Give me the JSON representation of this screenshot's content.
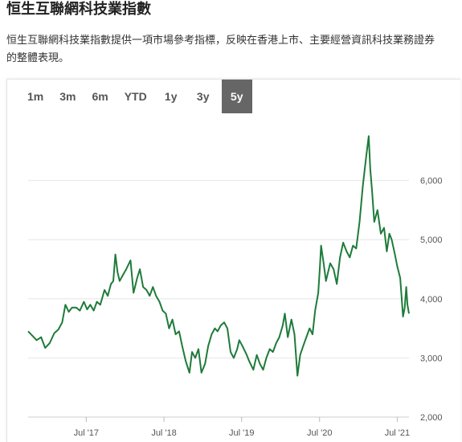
{
  "page": {
    "title": "恒生互聯網科技業指數",
    "description": "恒生互聯網科技業指數提供一項市場參考指標，反映在香港上市、主要經營資訊科技業務證券的整體表現。"
  },
  "range_selector": {
    "active": "5y",
    "options": [
      "1m",
      "3m",
      "6m",
      "YTD",
      "1y",
      "3y",
      "5y"
    ]
  },
  "colors": {
    "line": "#1e7b3a",
    "grid": "#e6e6e6",
    "active_bg": "#666666"
  },
  "chart_data": {
    "type": "line",
    "title": "",
    "xlabel": "",
    "ylabel": "",
    "ylim": [
      2000,
      7000
    ],
    "yticks": [
      2000,
      3000,
      4000,
      5000,
      6000
    ],
    "ytick_labels": [
      "2,000",
      "3,000",
      "4,000",
      "5,000",
      "6,000"
    ],
    "xticks": [
      "2017-07-01",
      "2018-07-01",
      "2019-07-01",
      "2020-07-01",
      "2021-07-01"
    ],
    "xtick_labels": [
      "Jul '17",
      "Jul '18",
      "Jul '19",
      "Jul '20",
      "Jul '21"
    ],
    "xlim": [
      "2016-10-01",
      "2021-08-25"
    ],
    "grid": true,
    "series": [
      {
        "name": "",
        "points": [
          [
            "2016-10-01",
            3450
          ],
          [
            "2016-10-20",
            3380
          ],
          [
            "2016-11-10",
            3300
          ],
          [
            "2016-12-01",
            3350
          ],
          [
            "2016-12-20",
            3170
          ],
          [
            "2017-01-10",
            3250
          ],
          [
            "2017-02-01",
            3420
          ],
          [
            "2017-02-20",
            3480
          ],
          [
            "2017-03-10",
            3600
          ],
          [
            "2017-03-25",
            3900
          ],
          [
            "2017-04-10",
            3780
          ],
          [
            "2017-04-25",
            3850
          ],
          [
            "2017-05-15",
            3850
          ],
          [
            "2017-06-01",
            3800
          ],
          [
            "2017-06-20",
            3950
          ],
          [
            "2017-07-05",
            3820
          ],
          [
            "2017-07-20",
            3900
          ],
          [
            "2017-08-05",
            3800
          ],
          [
            "2017-08-20",
            3950
          ],
          [
            "2017-09-05",
            3900
          ],
          [
            "2017-09-25",
            4150
          ],
          [
            "2017-10-10",
            4050
          ],
          [
            "2017-10-25",
            4250
          ],
          [
            "2017-11-05",
            4300
          ],
          [
            "2017-11-15",
            4750
          ],
          [
            "2017-11-25",
            4450
          ],
          [
            "2017-12-05",
            4300
          ],
          [
            "2017-12-20",
            4400
          ],
          [
            "2018-01-05",
            4500
          ],
          [
            "2018-01-25",
            4650
          ],
          [
            "2018-02-08",
            4100
          ],
          [
            "2018-02-25",
            4350
          ],
          [
            "2018-03-10",
            4500
          ],
          [
            "2018-03-25",
            4200
          ],
          [
            "2018-04-10",
            4150
          ],
          [
            "2018-04-25",
            4050
          ],
          [
            "2018-05-10",
            4200
          ],
          [
            "2018-05-25",
            4050
          ],
          [
            "2018-06-10",
            3950
          ],
          [
            "2018-06-25",
            3800
          ],
          [
            "2018-07-10",
            3750
          ],
          [
            "2018-07-25",
            3500
          ],
          [
            "2018-08-10",
            3650
          ],
          [
            "2018-08-25",
            3400
          ],
          [
            "2018-09-10",
            3450
          ],
          [
            "2018-09-25",
            3200
          ],
          [
            "2018-10-11",
            2950
          ],
          [
            "2018-10-29",
            2750
          ],
          [
            "2018-11-10",
            3100
          ],
          [
            "2018-11-25",
            3000
          ],
          [
            "2018-12-10",
            3150
          ],
          [
            "2018-12-24",
            2750
          ],
          [
            "2019-01-10",
            2900
          ],
          [
            "2019-01-25",
            3200
          ],
          [
            "2019-02-10",
            3400
          ],
          [
            "2019-02-25",
            3500
          ],
          [
            "2019-03-10",
            3450
          ],
          [
            "2019-03-25",
            3550
          ],
          [
            "2019-04-10",
            3600
          ],
          [
            "2019-04-25",
            3500
          ],
          [
            "2019-05-10",
            3100
          ],
          [
            "2019-05-25",
            3000
          ],
          [
            "2019-06-10",
            3150
          ],
          [
            "2019-06-20",
            3300
          ],
          [
            "2019-07-05",
            3200
          ],
          [
            "2019-07-25",
            3050
          ],
          [
            "2019-08-05",
            2950
          ],
          [
            "2019-08-25",
            2800
          ],
          [
            "2019-09-10",
            3050
          ],
          [
            "2019-09-25",
            2900
          ],
          [
            "2019-10-10",
            2800
          ],
          [
            "2019-10-25",
            3000
          ],
          [
            "2019-11-10",
            3150
          ],
          [
            "2019-11-25",
            3100
          ],
          [
            "2019-12-10",
            3250
          ],
          [
            "2019-12-25",
            3350
          ],
          [
            "2020-01-10",
            3550
          ],
          [
            "2020-01-20",
            3750
          ],
          [
            "2020-02-03",
            3350
          ],
          [
            "2020-02-20",
            3650
          ],
          [
            "2020-03-05",
            3400
          ],
          [
            "2020-03-19",
            2700
          ],
          [
            "2020-04-01",
            3050
          ],
          [
            "2020-04-15",
            3200
          ],
          [
            "2020-04-30",
            3350
          ],
          [
            "2020-05-15",
            3500
          ],
          [
            "2020-05-29",
            3400
          ],
          [
            "2020-06-10",
            3800
          ],
          [
            "2020-06-25",
            4100
          ],
          [
            "2020-07-03",
            4550
          ],
          [
            "2020-07-08",
            4900
          ],
          [
            "2020-07-20",
            4600
          ],
          [
            "2020-07-31",
            4300
          ],
          [
            "2020-08-10",
            4450
          ],
          [
            "2020-08-20",
            4600
          ],
          [
            "2020-09-05",
            4500
          ],
          [
            "2020-09-20",
            4250
          ],
          [
            "2020-10-05",
            4700
          ],
          [
            "2020-10-20",
            4950
          ],
          [
            "2020-11-05",
            4800
          ],
          [
            "2020-11-20",
            4700
          ],
          [
            "2020-12-05",
            4900
          ],
          [
            "2020-12-20",
            4850
          ],
          [
            "2021-01-05",
            5300
          ],
          [
            "2021-01-20",
            5900
          ],
          [
            "2021-02-05",
            6400
          ],
          [
            "2021-02-17",
            6750
          ],
          [
            "2021-02-24",
            6200
          ],
          [
            "2021-03-05",
            5800
          ],
          [
            "2021-03-15",
            5300
          ],
          [
            "2021-03-30",
            5500
          ],
          [
            "2021-04-15",
            5100
          ],
          [
            "2021-04-30",
            5200
          ],
          [
            "2021-05-13",
            4800
          ],
          [
            "2021-05-25",
            5100
          ],
          [
            "2021-06-05",
            5000
          ],
          [
            "2021-06-20",
            4750
          ],
          [
            "2021-07-01",
            4550
          ],
          [
            "2021-07-15",
            4350
          ],
          [
            "2021-07-28",
            3700
          ],
          [
            "2021-08-05",
            3850
          ],
          [
            "2021-08-12",
            4200
          ],
          [
            "2021-08-18",
            3900
          ],
          [
            "2021-08-25",
            3750
          ]
        ]
      }
    ]
  }
}
